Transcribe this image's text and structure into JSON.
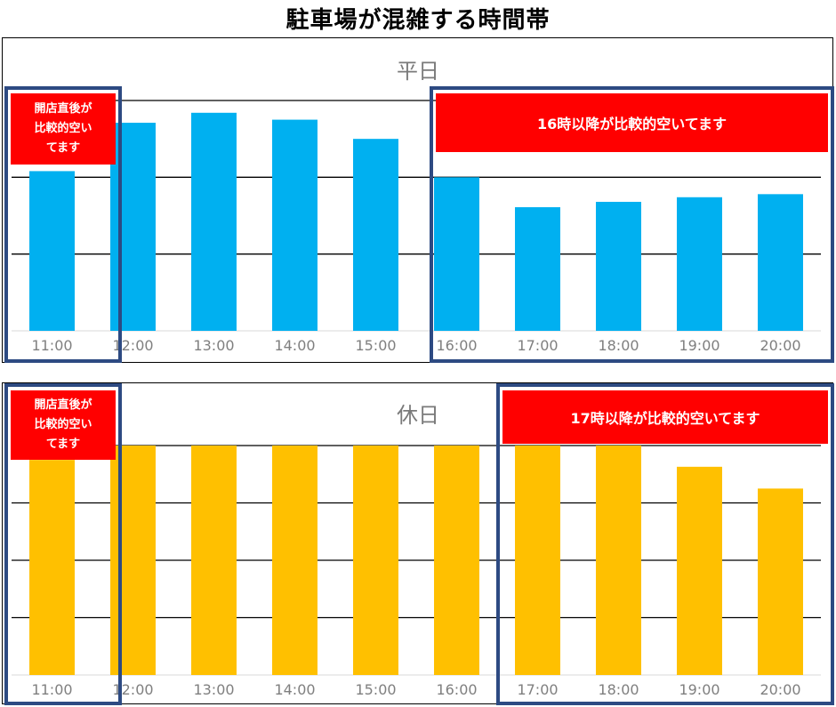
{
  "title": "駐車場が混雑する時間帯",
  "colors": {
    "weekday_bar": "#00b0f0",
    "holiday_bar": "#ffc000",
    "highlight_border": "#2d4a82",
    "banner_bg": "#ff0000",
    "banner_text": "#ffffff",
    "tick_text": "#7f7f7f"
  },
  "weekday": {
    "label": "平日",
    "open_banner": "開店直後が\n比較的空い\nてます",
    "late_banner": "16時以降が比較的空いてます"
  },
  "holiday": {
    "label": "休日",
    "open_banner": "開店直後が\n比較的空い\nてます",
    "late_banner": "17時以降が比較的空いてます"
  },
  "chart_data": [
    {
      "type": "bar",
      "title": "平日",
      "categories": [
        "11:00",
        "12:00",
        "13:00",
        "14:00",
        "15:00",
        "16:00",
        "17:00",
        "18:00",
        "19:00",
        "20:00"
      ],
      "values": [
        2.08,
        2.71,
        2.84,
        2.75,
        2.5,
        2.0,
        1.61,
        1.68,
        1.74,
        1.78
      ],
      "ylim": [
        0,
        3.0
      ],
      "grid": true,
      "xlabel": "",
      "ylabel": ""
    },
    {
      "type": "bar",
      "title": "休日",
      "categories": [
        "11:00",
        "12:00",
        "13:00",
        "14:00",
        "15:00",
        "16:00",
        "17:00",
        "18:00",
        "19:00",
        "20:00"
      ],
      "values": [
        3.75,
        4.0,
        4.0,
        4.0,
        4.0,
        4.0,
        4.0,
        4.0,
        3.63,
        3.25
      ],
      "ylim": [
        0,
        4.0
      ],
      "grid": true,
      "xlabel": "",
      "ylabel": ""
    }
  ]
}
